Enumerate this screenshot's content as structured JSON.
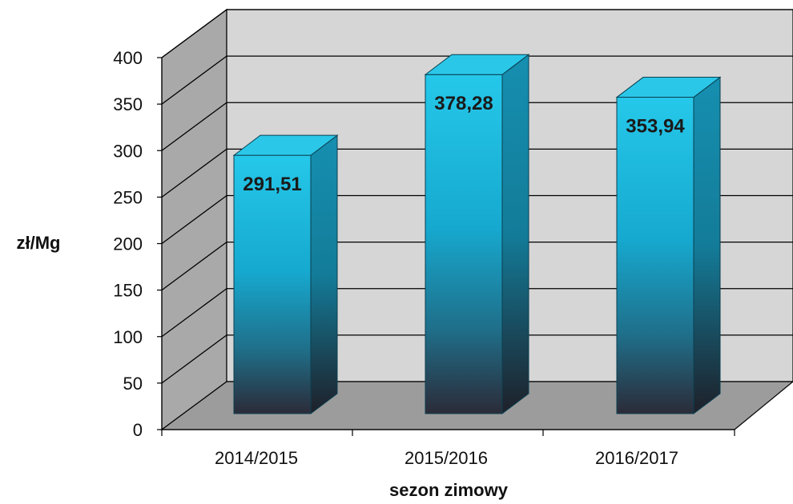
{
  "chart_data": {
    "type": "bar",
    "categories": [
      "2014/2015",
      "2015/2016",
      "2016/2017"
    ],
    "values": [
      291.51,
      378.28,
      353.94
    ],
    "data_labels": [
      "291,51",
      "378,28",
      "353,94"
    ],
    "xlabel": "sezon zimowy",
    "ylabel": "zł/Mg",
    "ylim": [
      0,
      400
    ],
    "yticks": [
      "0",
      "50",
      "100",
      "150",
      "200",
      "250",
      "300",
      "350",
      "400"
    ],
    "grid": true,
    "legend": "none",
    "style": "3d-column",
    "colors": {
      "bar_top": "#1ec3e6",
      "bar_mid": "#18a9cc",
      "bar_bottom": "#2a2d3a",
      "back_wall": "#d4d4d4",
      "side_wall": "#a9a9a9",
      "floor": "#9c9c9c",
      "grid": "#000000"
    }
  }
}
